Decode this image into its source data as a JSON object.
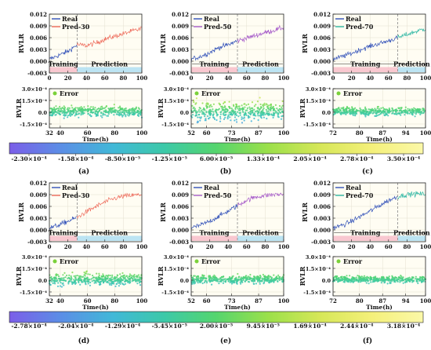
{
  "chart_data": [
    {
      "panel": "(a)",
      "type": "line",
      "ylabel": "RVLR",
      "yticks": [
        "0.012",
        "0.009",
        "0.006",
        "0.003",
        "0.000",
        "-0.003"
      ],
      "ylim": [
        -0.003,
        0.012
      ],
      "xlim": [
        0,
        100
      ],
      "xticks": [
        "0",
        "20",
        "40",
        "60",
        "80",
        "100"
      ],
      "split": 30,
      "pred_color": "#ee6a5a",
      "series": [
        {
          "name": "Real",
          "color": "#2f4fb8"
        },
        {
          "name": "Pred-30",
          "color": "#ee6a5a"
        }
      ],
      "shaded": {
        "training": "Training",
        "prediction": "Prediction"
      },
      "real_trend": [
        [
          0,
          0.0005
        ],
        [
          10,
          0.0015
        ],
        [
          20,
          0.0025
        ],
        [
          30,
          0.0042
        ],
        [
          40,
          0.0038
        ],
        [
          50,
          0.0045
        ],
        [
          60,
          0.0055
        ],
        [
          70,
          0.0062
        ],
        [
          80,
          0.0068
        ],
        [
          90,
          0.0075
        ],
        [
          100,
          0.0082
        ]
      ],
      "pred_trend": [
        [
          30,
          0.0042
        ],
        [
          40,
          0.004
        ],
        [
          50,
          0.0046
        ],
        [
          60,
          0.0056
        ],
        [
          70,
          0.0063
        ],
        [
          80,
          0.007
        ],
        [
          90,
          0.0077
        ],
        [
          100,
          0.0083
        ]
      ]
    },
    {
      "panel": "(b)",
      "type": "line",
      "ylabel": "RVLR",
      "yticks": [
        "0.012",
        "0.009",
        "0.006",
        "0.003",
        "0.000",
        "-0.003"
      ],
      "ylim": [
        -0.003,
        0.012
      ],
      "xlim": [
        0,
        100
      ],
      "xticks": [
        "0",
        "20",
        "40",
        "60",
        "80",
        "100"
      ],
      "split": 50,
      "pred_color": "#a65bc9",
      "series": [
        {
          "name": "Real",
          "color": "#2f4fb8"
        },
        {
          "name": "Pred-50",
          "color": "#a65bc9"
        }
      ],
      "shaded": {
        "training": "Training",
        "prediction": "Prediction"
      },
      "real_trend": [
        [
          0,
          0.0005
        ],
        [
          10,
          0.0012
        ],
        [
          20,
          0.0022
        ],
        [
          30,
          0.0035
        ],
        [
          40,
          0.0042
        ],
        [
          50,
          0.0052
        ],
        [
          60,
          0.0058
        ],
        [
          70,
          0.0065
        ],
        [
          80,
          0.0072
        ],
        [
          90,
          0.0078
        ],
        [
          100,
          0.0085
        ]
      ],
      "pred_trend": [
        [
          50,
          0.0052
        ],
        [
          60,
          0.0059
        ],
        [
          70,
          0.0066
        ],
        [
          80,
          0.0073
        ],
        [
          90,
          0.0079
        ],
        [
          100,
          0.0086
        ]
      ]
    },
    {
      "panel": "(c)",
      "type": "line",
      "ylabel": "RVLR",
      "yticks": [
        "0.012",
        "0.009",
        "0.006",
        "0.003",
        "0.000",
        "-0.003"
      ],
      "ylim": [
        -0.003,
        0.012
      ],
      "xlim": [
        0,
        100
      ],
      "xticks": [
        "0",
        "20",
        "40",
        "60",
        "80",
        "100"
      ],
      "split": 70,
      "pred_color": "#2eb7a4",
      "series": [
        {
          "name": "Real",
          "color": "#2f4fb8"
        },
        {
          "name": "Pred-70",
          "color": "#2eb7a4"
        }
      ],
      "shaded": {
        "training": "Training",
        "prediction": "Prediction"
      },
      "real_trend": [
        [
          0,
          0.0005
        ],
        [
          10,
          0.0012
        ],
        [
          20,
          0.002
        ],
        [
          30,
          0.003
        ],
        [
          40,
          0.0038
        ],
        [
          50,
          0.0045
        ],
        [
          60,
          0.0052
        ],
        [
          70,
          0.006
        ],
        [
          80,
          0.0068
        ],
        [
          90,
          0.0075
        ],
        [
          100,
          0.0082
        ]
      ],
      "pred_trend": [
        [
          70,
          0.006
        ],
        [
          80,
          0.0068
        ],
        [
          90,
          0.0076
        ],
        [
          100,
          0.0083
        ]
      ]
    },
    {
      "panel": "(d)",
      "type": "line",
      "ylabel": "RVLR",
      "yticks": [
        "0.012",
        "0.009",
        "0.006",
        "0.003",
        "0.000",
        "-0.003"
      ],
      "ylim": [
        -0.003,
        0.012
      ],
      "xlim": [
        0,
        100
      ],
      "xticks": [
        "0",
        "20",
        "40",
        "60",
        "80",
        "100"
      ],
      "split": 30,
      "pred_color": "#ee6a5a",
      "series": [
        {
          "name": "Real",
          "color": "#2f4fb8"
        },
        {
          "name": "Pred-30",
          "color": "#ee6a5a"
        }
      ],
      "shaded": {
        "training": "Training",
        "prediction": "Prediction"
      },
      "real_trend": [
        [
          0,
          0.0005
        ],
        [
          10,
          0.0012
        ],
        [
          20,
          0.0022
        ],
        [
          30,
          0.0032
        ],
        [
          40,
          0.0045
        ],
        [
          50,
          0.0058
        ],
        [
          60,
          0.007
        ],
        [
          70,
          0.008
        ],
        [
          80,
          0.0085
        ],
        [
          90,
          0.0088
        ],
        [
          100,
          0.009
        ]
      ],
      "pred_trend": [
        [
          30,
          0.0032
        ],
        [
          40,
          0.0046
        ],
        [
          50,
          0.0059
        ],
        [
          60,
          0.0071
        ],
        [
          70,
          0.008
        ],
        [
          80,
          0.0086
        ],
        [
          90,
          0.0088
        ],
        [
          100,
          0.009
        ]
      ]
    },
    {
      "panel": "(e)",
      "type": "line",
      "ylabel": "RVLR",
      "yticks": [
        "0.012",
        "0.009",
        "0.006",
        "0.003",
        "0.000",
        "-0.003"
      ],
      "ylim": [
        -0.003,
        0.012
      ],
      "xlim": [
        0,
        100
      ],
      "xticks": [
        "0",
        "20",
        "40",
        "60",
        "80",
        "100"
      ],
      "split": 50,
      "pred_color": "#a65bc9",
      "series": [
        {
          "name": "Real",
          "color": "#2f4fb8"
        },
        {
          "name": "Pred-50",
          "color": "#a65bc9"
        }
      ],
      "shaded": {
        "training": "Training",
        "prediction": "Prediction"
      },
      "real_trend": [
        [
          0,
          0.0005
        ],
        [
          10,
          0.0012
        ],
        [
          20,
          0.0022
        ],
        [
          30,
          0.0035
        ],
        [
          40,
          0.0048
        ],
        [
          50,
          0.0062
        ],
        [
          60,
          0.0075
        ],
        [
          70,
          0.0083
        ],
        [
          80,
          0.0087
        ],
        [
          90,
          0.009
        ],
        [
          100,
          0.009
        ]
      ],
      "pred_trend": [
        [
          50,
          0.0062
        ],
        [
          60,
          0.0076
        ],
        [
          70,
          0.0084
        ],
        [
          80,
          0.0088
        ],
        [
          90,
          0.009
        ],
        [
          100,
          0.0091
        ]
      ]
    },
    {
      "panel": "(f)",
      "type": "line",
      "ylabel": "RVLR",
      "yticks": [
        "0.012",
        "0.009",
        "0.006",
        "0.003",
        "0.000",
        "-0.003"
      ],
      "ylim": [
        -0.003,
        0.012
      ],
      "xlim": [
        0,
        100
      ],
      "xticks": [
        "0",
        "20",
        "40",
        "60",
        "80",
        "100"
      ],
      "split": 70,
      "pred_color": "#2eb7a4",
      "series": [
        {
          "name": "Real",
          "color": "#2f4fb8"
        },
        {
          "name": "Pred-70",
          "color": "#2eb7a4"
        }
      ],
      "shaded": {
        "training": "Training",
        "prediction": "Prediction"
      },
      "real_trend": [
        [
          0,
          0.0005
        ],
        [
          10,
          0.0012
        ],
        [
          20,
          0.0022
        ],
        [
          30,
          0.0035
        ],
        [
          40,
          0.0048
        ],
        [
          50,
          0.0062
        ],
        [
          60,
          0.0075
        ],
        [
          70,
          0.0085
        ],
        [
          80,
          0.009
        ],
        [
          90,
          0.0092
        ],
        [
          100,
          0.0091
        ]
      ],
      "pred_trend": [
        [
          70,
          0.0085
        ],
        [
          80,
          0.009
        ],
        [
          90,
          0.0092
        ],
        [
          100,
          0.0091
        ]
      ]
    },
    {
      "panel": "(a)",
      "type": "scatter",
      "ylabel": "RVLR",
      "xlabel": "Time(h)",
      "series": [
        {
          "name": "Error",
          "color": "#7ad13a"
        }
      ],
      "yticks": [
        "3.0×10⁻⁴",
        "1.5×10⁻⁴",
        "0.0",
        "-1.5×10⁻⁴"
      ],
      "ylim": [
        -0.0002,
        0.0003
      ],
      "xticks": [
        "32",
        "40",
        "60",
        "80",
        "100"
      ],
      "xtick_values": [
        32,
        40,
        60,
        80,
        100
      ],
      "xlim": [
        32,
        100
      ],
      "spread": 6e-05
    },
    {
      "panel": "(b)",
      "type": "scatter",
      "ylabel": "RVLR",
      "xlabel": "Time(h)",
      "series": [
        {
          "name": "Error",
          "color": "#7ad13a"
        }
      ],
      "yticks": [
        "3.0×10⁻⁴",
        "1.5×10⁻⁴",
        "0.0",
        "-1.5×10⁻⁴"
      ],
      "ylim": [
        -0.0002,
        0.0003
      ],
      "xticks": [
        "52",
        "60",
        "73",
        "87",
        "100"
      ],
      "xtick_values": [
        52,
        60,
        73,
        87,
        100
      ],
      "xlim": [
        52,
        100
      ],
      "spread": 0.00011
    },
    {
      "panel": "(c)",
      "type": "scatter",
      "ylabel": "RVLR",
      "xlabel": "Time(h)",
      "series": [
        {
          "name": "Error",
          "color": "#7ad13a"
        }
      ],
      "yticks": [
        "3.0×10⁻⁴",
        "1.5×10⁻⁴",
        "0.0",
        "-1.5×10⁻⁴"
      ],
      "ylim": [
        -0.0002,
        0.0003
      ],
      "xticks": [
        "72",
        "80",
        "87",
        "94",
        "100"
      ],
      "xtick_values": [
        72,
        80,
        87,
        94,
        100
      ],
      "xlim": [
        72,
        100
      ],
      "spread": 5e-05
    },
    {
      "panel": "(d)",
      "type": "scatter",
      "ylabel": "RVLR",
      "xlabel": "Time(h)",
      "series": [
        {
          "name": "Error",
          "color": "#7ad13a"
        }
      ],
      "yticks": [
        "3.0×10⁻⁴",
        "1.5×10⁻⁴",
        "0.0",
        "-1.5×10⁻⁴"
      ],
      "ylim": [
        -0.0002,
        0.0003
      ],
      "xticks": [
        "32",
        "40",
        "60",
        "80",
        "100"
      ],
      "xtick_values": [
        32,
        40,
        60,
        80,
        100
      ],
      "xlim": [
        32,
        100
      ],
      "spread": 7e-05
    },
    {
      "panel": "(e)",
      "type": "scatter",
      "ylabel": "RVLR",
      "xlabel": "Time(h)",
      "series": [
        {
          "name": "Error",
          "color": "#7ad13a"
        }
      ],
      "yticks": [
        "3.0×10⁻⁴",
        "1.5×10⁻⁴",
        "0.0",
        "-1.5×10⁻⁴"
      ],
      "ylim": [
        -0.0002,
        0.0003
      ],
      "xticks": [
        "52",
        "60",
        "73",
        "87",
        "100"
      ],
      "xtick_values": [
        52,
        60,
        73,
        87,
        100
      ],
      "xlim": [
        52,
        100
      ],
      "spread": 5e-05
    },
    {
      "panel": "(f)",
      "type": "scatter",
      "ylabel": "RVLR",
      "xlabel": "Time(h)",
      "series": [
        {
          "name": "Error",
          "color": "#7ad13a"
        }
      ],
      "yticks": [
        "3.0×10⁻⁴",
        "1.5×10⁻⁴",
        "0.0",
        "-1.5×10⁻⁴"
      ],
      "ylim": [
        -0.0002,
        0.0003
      ],
      "xticks": [
        "72",
        "80",
        "87",
        "94",
        "100"
      ],
      "xtick_values": [
        72,
        80,
        87,
        94,
        100
      ],
      "xlim": [
        72,
        100
      ],
      "spread": 4e-05
    }
  ],
  "colorbars": [
    {
      "labels": [
        "-2.30×10⁻⁴",
        "-1.58×10⁻⁴",
        "-8.50×10⁻⁵",
        "-1.25×10⁻⁵",
        "6.00×10⁻⁵",
        "1.33×10⁻⁴",
        "2.05×10⁻⁴",
        "2.78×10⁻⁴",
        "3.50×10⁻⁴"
      ]
    },
    {
      "labels": [
        "-2.78×10⁻⁴",
        "-2.04×10⁻⁴",
        "-1.29×10⁻⁴",
        "-5.45×10⁻⁵",
        "2.00×10⁻⁵",
        "9.45×10⁻⁵",
        "1.69×10⁻⁴",
        "2.44×10⁻⁴",
        "3.18×10⁻⁴"
      ]
    }
  ],
  "colormap": [
    "#7b5ee8",
    "#5b8ee6",
    "#41b8d8",
    "#3cc9a8",
    "#55d56e",
    "#9be04a",
    "#d6e758",
    "#f4f07a",
    "#fbf8a8"
  ],
  "training_band_color": "#f7b0c0",
  "prediction_band_color": "#9fd8f2",
  "panel_labels": [
    "(a)",
    "(b)",
    "(c)",
    "(d)",
    "(e)",
    "(f)"
  ]
}
